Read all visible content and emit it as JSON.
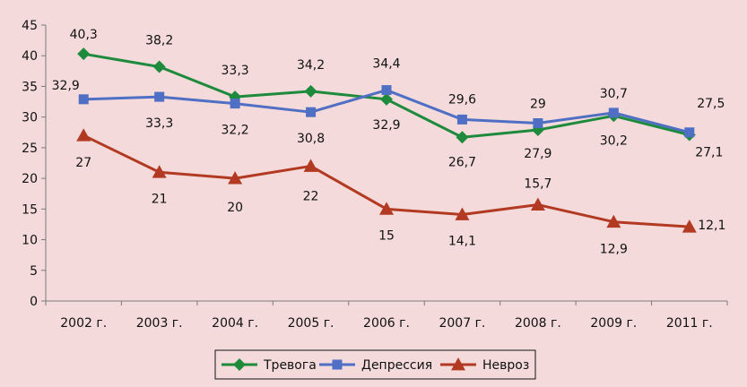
{
  "colors": {
    "background": "#f4dada",
    "axis": "#7a7a7a",
    "series": [
      "#1e8a3c",
      "#4f6fc4",
      "#b33a22"
    ]
  },
  "chart_data": {
    "type": "line",
    "categories": [
      "2002 г.",
      "2003 г.",
      "2004 г.",
      "2005 г.",
      "2006 г.",
      "2007 г.",
      "2008 г.",
      "2009 г.",
      "2011 г."
    ],
    "series": [
      {
        "name": "Тревога",
        "marker": "diamond",
        "color": "#1e8a3c",
        "values": [
          40.3,
          38.2,
          33.3,
          34.2,
          32.9,
          26.7,
          27.9,
          30.2,
          27.1
        ],
        "labels": [
          "40,3",
          "38,2",
          "33,3",
          "34,2",
          "32,9",
          "26,7",
          "27,9",
          "30,2",
          "27,1"
        ]
      },
      {
        "name": "Депрессия",
        "marker": "square",
        "color": "#4f6fc4",
        "values": [
          32.9,
          33.3,
          32.2,
          30.8,
          34.4,
          29.6,
          29,
          30.7,
          27.5
        ],
        "labels": [
          "32,9",
          "33,3",
          "32,2",
          "30,8",
          "34,4",
          "29,6",
          "29",
          "30,7",
          "27,5"
        ]
      },
      {
        "name": "Невроз",
        "marker": "triangle",
        "color": "#b33a22",
        "values": [
          27,
          21,
          20,
          22,
          15,
          14.1,
          15.7,
          12.9,
          12.1
        ],
        "labels": [
          "27",
          "21",
          "20",
          "22",
          "15",
          "14,1",
          "15,7",
          "12,9",
          "12,1"
        ]
      }
    ],
    "ylim": [
      0,
      45
    ],
    "yticks": [
      0,
      5,
      10,
      15,
      20,
      25,
      30,
      35,
      40,
      45
    ],
    "grid": false,
    "legend": "bottom",
    "title": "",
    "xlabel": "",
    "ylabel": ""
  }
}
